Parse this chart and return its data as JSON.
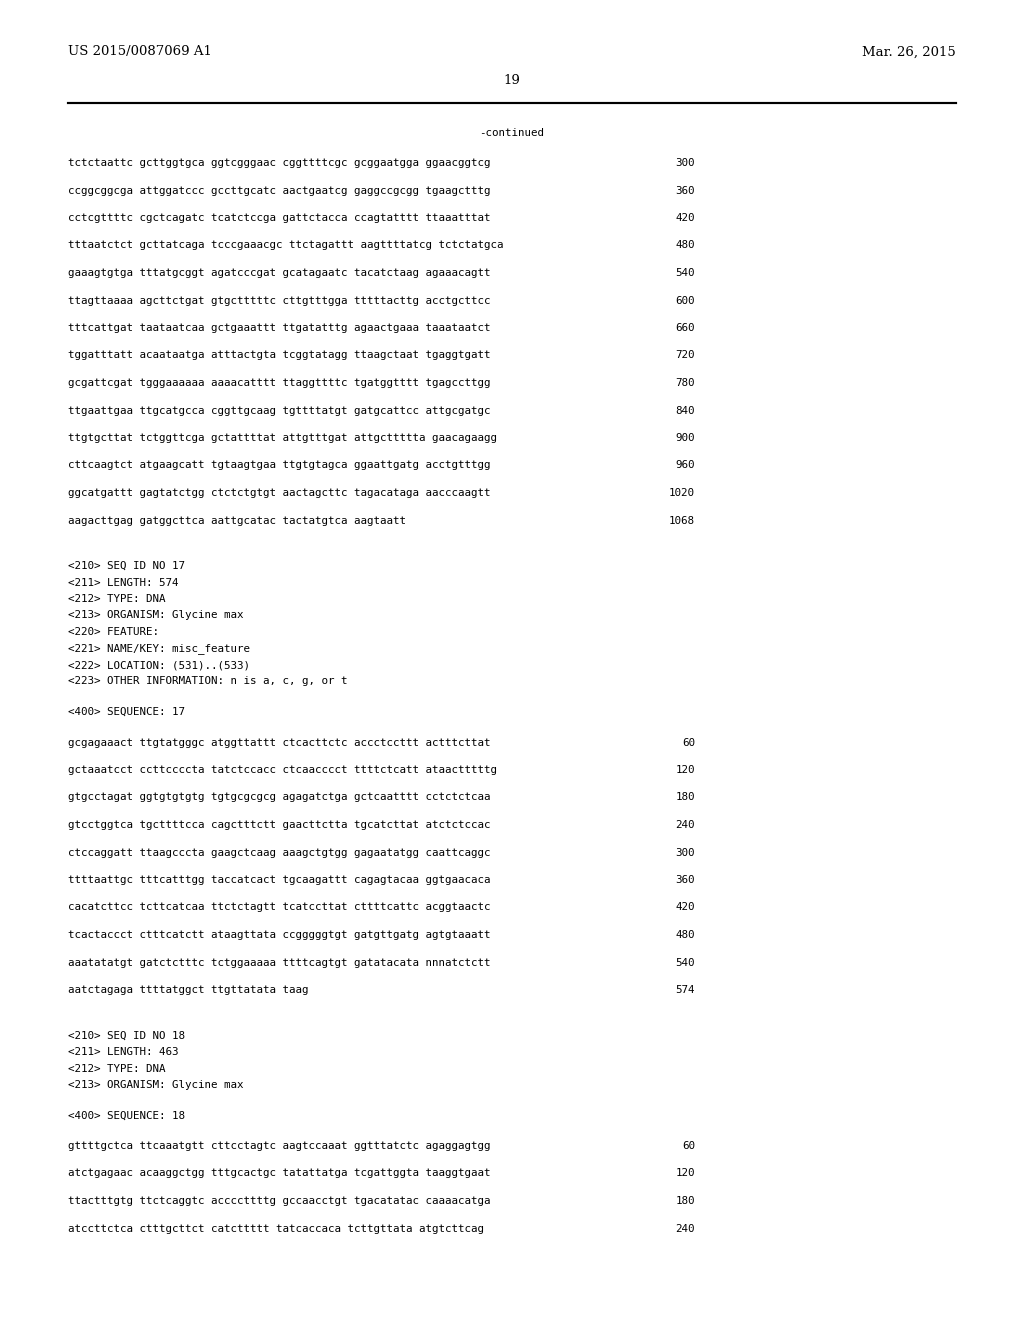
{
  "bg_color": "#ffffff",
  "header_left": "US 2015/0087069 A1",
  "header_right": "Mar. 26, 2015",
  "page_number": "19",
  "continued_text": "-continued",
  "monospace_lines": [
    [
      "tctctaattc gcttggtgca ggtcgggaac cggttttcgc gcggaatgga ggaacggtcg",
      "300"
    ],
    [
      "ccggcggcga attggatccc gccttgcatc aactgaatcg gaggccgcgg tgaagctttg",
      "360"
    ],
    [
      "cctcgttttc cgctcagatc tcatctccga gattctacca ccagtatttt ttaaatttat",
      "420"
    ],
    [
      "tttaatctct gcttatcaga tcccgaaacgc ttctagattt aagttttatcg tctctatgca",
      "480"
    ],
    [
      "gaaagtgtga tttatgcggt agatcccgat gcatagaatc tacatctaag agaaacagtt",
      "540"
    ],
    [
      "ttagttaaaa agcttctgat gtgctttttc cttgtttgga tttttacttg acctgcttcc",
      "600"
    ],
    [
      "tttcattgat taataatcaa gctgaaattt ttgatatttg agaactgaaa taaataatct",
      "660"
    ],
    [
      "tggatttatt acaataatga atttactgta tcggtatagg ttaagctaat tgaggtgatt",
      "720"
    ],
    [
      "gcgattcgat tgggaaaaaa aaaacatttt ttaggttttc tgatggtttt tgagccttgg",
      "780"
    ],
    [
      "ttgaattgaa ttgcatgcca cggttgcaag tgttttatgt gatgcattcc attgcgatgc",
      "840"
    ],
    [
      "ttgtgcttat tctggttcga gctattttat attgtttgat attgcttttta gaacagaagg",
      "900"
    ],
    [
      "cttcaagtct atgaagcatt tgtaagtgaa ttgtgtagca ggaattgatg acctgtttgg",
      "960"
    ],
    [
      "ggcatgattt gagtatctgg ctctctgtgt aactagcttc tagacataga aacccaagtt",
      "1020"
    ],
    [
      "aagacttgag gatggcttca aattgcatac tactatgtca aagtaatt",
      "1068"
    ]
  ],
  "metadata_block_17": [
    "<210> SEQ ID NO 17",
    "<211> LENGTH: 574",
    "<212> TYPE: DNA",
    "<213> ORGANISM: Glycine max",
    "<220> FEATURE:",
    "<221> NAME/KEY: misc_feature",
    "<222> LOCATION: (531)..(533)",
    "<223> OTHER INFORMATION: n is a, c, g, or t"
  ],
  "seq17_label": "<400> SEQUENCE: 17",
  "seq17_lines": [
    [
      "gcgagaaact ttgtatgggc atggttattt ctcacttctc accctccttt actttcttat",
      "60"
    ],
    [
      "gctaaatcct ccttccccta tatctccacc ctcaacccct ttttctcatt ataactttttg",
      "120"
    ],
    [
      "gtgcctagat ggtgtgtgtg tgtgcgcgcg agagatctga gctcaatttt cctctctcaa",
      "180"
    ],
    [
      "gtcctggtca tgcttttcca cagctttctt gaacttctta tgcatcttat atctctccac",
      "240"
    ],
    [
      "ctccaggatt ttaagcccta gaagctcaag aaagctgtgg gagaatatgg caattcaggc",
      "300"
    ],
    [
      "ttttaattgc tttcatttgg taccatcact tgcaagattt cagagtacaa ggtgaacaca",
      "360"
    ],
    [
      "cacatcttcc tcttcatcaa ttctctagtt tcatccttat cttttcattc acggtaactc",
      "420"
    ],
    [
      "tcactaccct ctttcatctt ataagttata ccgggggtgt gatgttgatg agtgtaaatt",
      "480"
    ],
    [
      "aaatatatgt gatctctttc tctggaaaaa ttttcagtgt gatatacata nnnatctctt",
      "540"
    ],
    [
      "aatctagaga ttttatggct ttgttatata taag",
      "574"
    ]
  ],
  "metadata_block_18": [
    "<210> SEQ ID NO 18",
    "<211> LENGTH: 463",
    "<212> TYPE: DNA",
    "<213> ORGANISM: Glycine max"
  ],
  "seq18_label": "<400> SEQUENCE: 18",
  "seq18_lines": [
    [
      "gttttgctca ttcaaatgtt cttcctagtc aagtccaaat ggtttatctc agaggagtgg",
      "60"
    ],
    [
      "atctgagaac acaaggctgg tttgcactgc tatattatga tcgattggta taaggtgaat",
      "120"
    ],
    [
      "ttactttgtg ttctcaggtc accccttttg gccaacctgt tgacatatac caaaacatga",
      "180"
    ],
    [
      "atccttctca ctttgcttct catcttttt tatcaccaca tcttgttata atgtcttcag",
      "240"
    ]
  ]
}
